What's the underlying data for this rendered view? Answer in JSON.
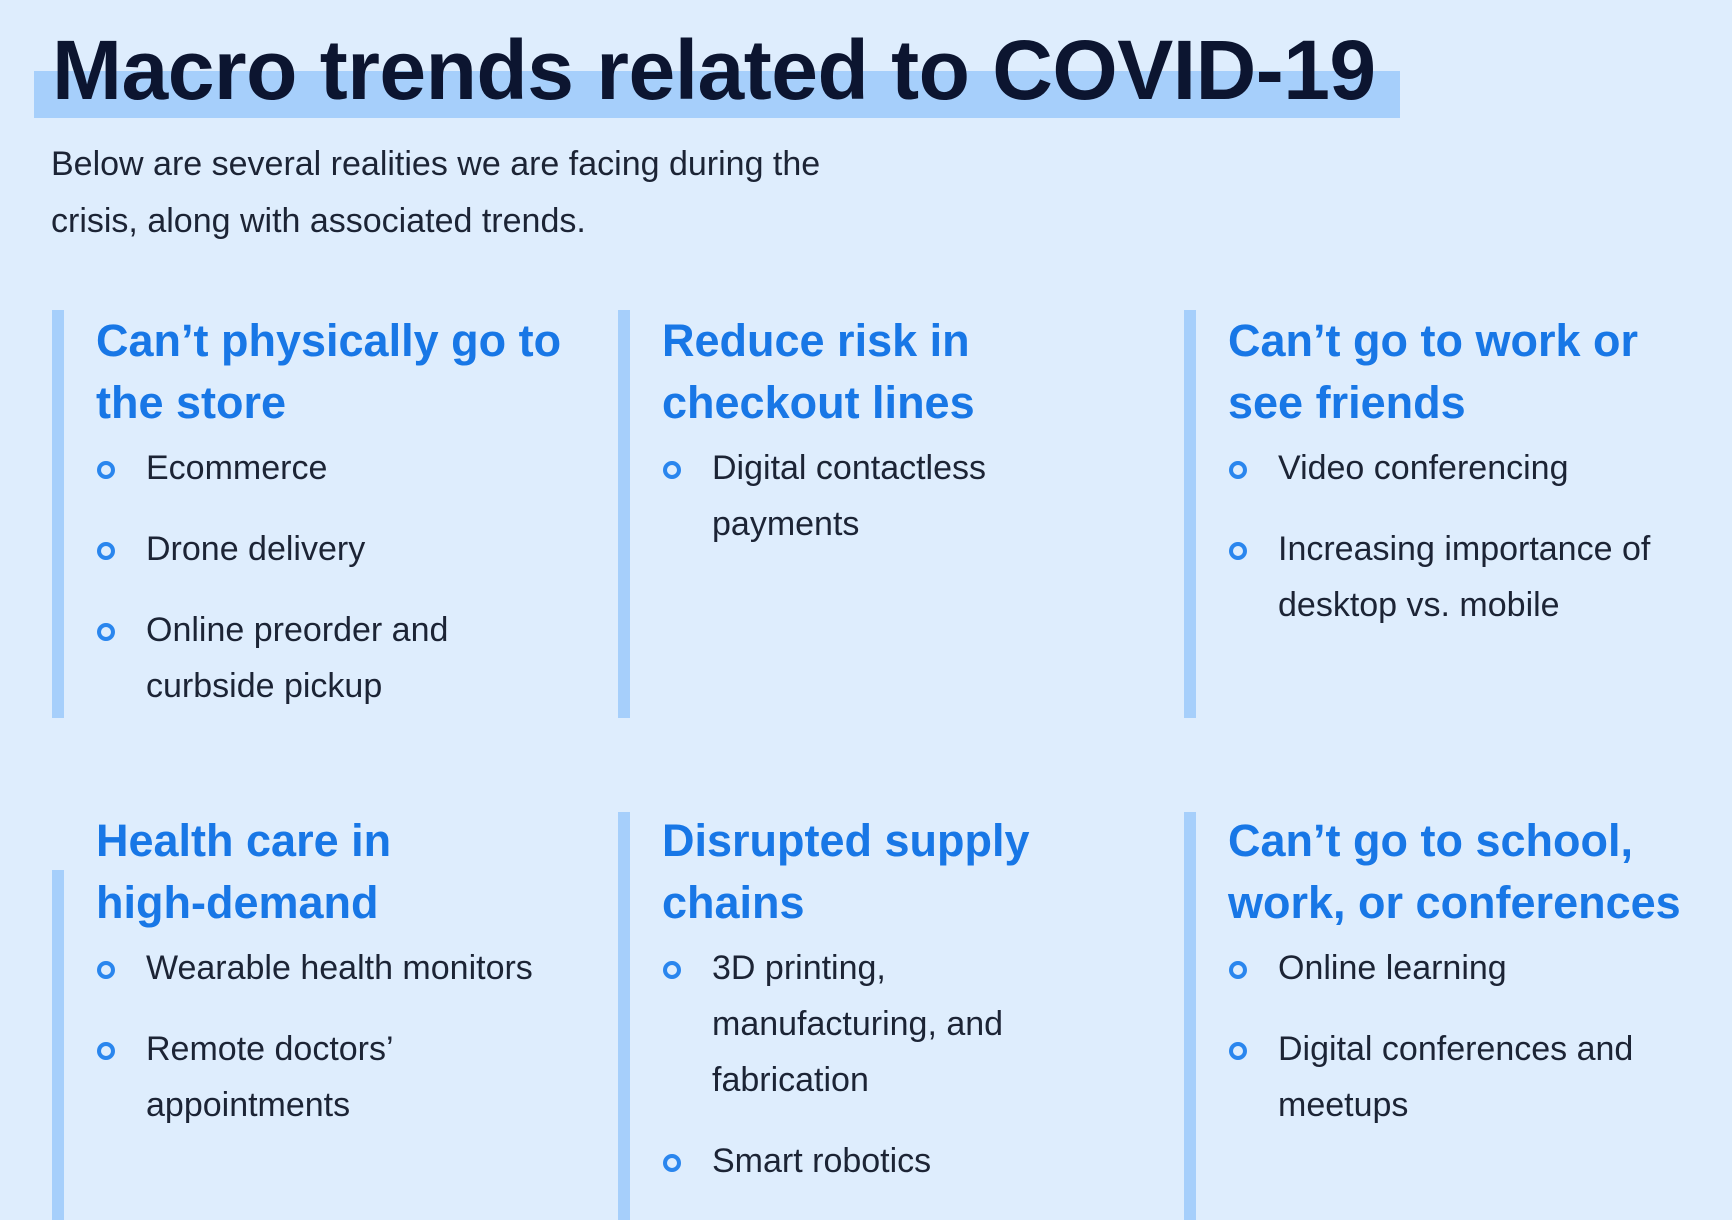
{
  "header": {
    "title": "Macro trends related to COVID-19",
    "subtitle": "Below are several realities we are facing during the crisis, along with associated trends."
  },
  "colors": {
    "background": "#deedfd",
    "highlight": "#a6cffb",
    "heading": "#1877e6",
    "title": "#0c1530",
    "body_text": "#1c2435",
    "bullet": "#2a86ee"
  },
  "cards": [
    {
      "heading": "Can’t physically go to the store",
      "items": [
        "Ecommerce",
        "Drone delivery",
        "Online preorder and curbside pickup"
      ]
    },
    {
      "heading": "Reduce risk in checkout lines",
      "items": [
        "Digital contactless payments"
      ]
    },
    {
      "heading": "Can’t go to work or see friends",
      "items": [
        "Video conferencing",
        "Increasing importance of desktop vs. mobile"
      ]
    },
    {
      "heading": "Health care in high-demand",
      "items": [
        "Wearable health monitors",
        "Remote doctors’ appointments"
      ]
    },
    {
      "heading": "Disrupted supply chains",
      "items": [
        "3D printing, manufacturing, and fabrication",
        "Smart robotics"
      ]
    },
    {
      "heading": "Can’t go to school, work, or conferences",
      "items": [
        "Online learning",
        "Digital conferences and meetups"
      ]
    }
  ]
}
